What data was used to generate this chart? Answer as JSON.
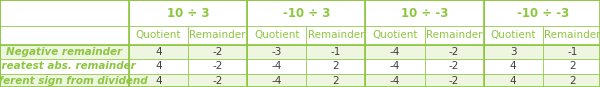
{
  "headers_top": [
    "10 ÷ 3",
    "-10 ÷ 3",
    "10 ÷ -3",
    "-10 ÷ -3"
  ],
  "headers_sub": [
    "Quotient",
    "Remainder"
  ],
  "row_labels": [
    "Negative remainder",
    "Greatest abs. remainder",
    "Different sign from dividend"
  ],
  "table_data": [
    [
      "4",
      "-2",
      "-3",
      "-1",
      "-4",
      "-2",
      "3",
      "-1"
    ],
    [
      "4",
      "-2",
      "-4",
      "2",
      "-4",
      "-2",
      "4",
      "2"
    ],
    [
      "4",
      "-2",
      "-4",
      "2",
      "-4",
      "-2",
      "4",
      "2"
    ]
  ],
  "header_color": "#8dc63f",
  "row_label_color": "#8dc63f",
  "border_color": "#8dc63f",
  "header_bg": "#ffffff",
  "row_bg_even": "#ffffff",
  "row_bg_odd": "#f0f0f0",
  "text_color_data": "#404040",
  "text_color_header": "#8dc63f",
  "background_color": "#ffffff",
  "font_size_header": 7.5,
  "font_size_data": 7.5,
  "font_size_top": 8.5
}
